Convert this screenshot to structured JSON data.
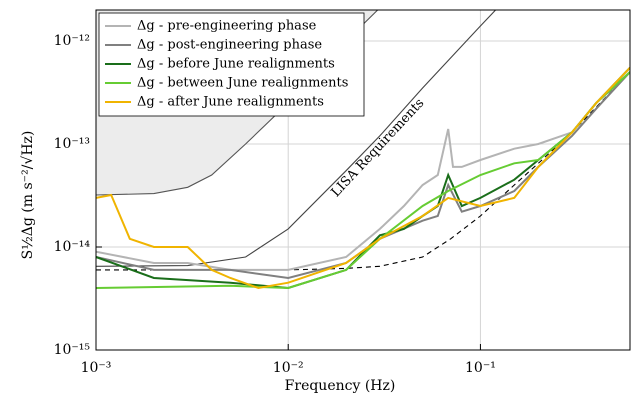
{
  "chart_data": {
    "type": "line",
    "log_x": true,
    "log_y": true,
    "grid": true,
    "xlabel": "Frequency (Hz)",
    "ylabel": "S½Δg (m s⁻²/√Hz)",
    "annotation": "LISA Requirements",
    "xlim": [
      0.001,
      0.6
    ],
    "ylim": [
      1e-15,
      2e-12
    ],
    "xticks": [
      {
        "value": 0.001,
        "label": "10⁻³"
      },
      {
        "value": 0.01,
        "label": "10⁻²"
      },
      {
        "value": 0.1,
        "label": "10⁻¹"
      }
    ],
    "yticks": [
      {
        "value": 1e-15,
        "label": "10⁻¹⁵"
      },
      {
        "value": 1e-14,
        "label": "10⁻¹⁴"
      },
      {
        "value": 1e-13,
        "label": "10⁻¹³"
      },
      {
        "value": 1e-12,
        "label": "10⁻¹²"
      }
    ],
    "legend": "upper left",
    "series": [
      {
        "style": "shaded",
        "color": "#555555",
        "x": [
          0.001,
          0.002,
          0.003,
          0.004,
          0.006,
          0.01,
          0.02,
          0.03
        ],
        "values": [
          3.2e-14,
          3.3e-14,
          3.8e-14,
          5e-14,
          1e-13,
          2.5e-13,
          1e-12,
          2.1e-12
        ]
      },
      {
        "style": "thin",
        "color": "#444444",
        "x": [
          0.001,
          0.003,
          0.006,
          0.01,
          0.02,
          0.03,
          0.05,
          0.1,
          0.12
        ],
        "values": [
          6.5e-15,
          6.6e-15,
          8e-15,
          1.5e-14,
          5.5e-14,
          1.2e-13,
          3.5e-13,
          1.4e-12,
          2e-12
        ]
      },
      {
        "style": "dashed",
        "color": "#000000",
        "x": [
          0.001,
          0.01,
          0.02,
          0.03,
          0.05,
          0.07,
          0.1,
          0.15,
          0.2,
          0.3,
          0.6
        ],
        "values": [
          6e-15,
          6e-15,
          6.2e-15,
          6.5e-15,
          8e-15,
          1.2e-14,
          2e-14,
          4e-14,
          6.5e-14,
          1.3e-13,
          5e-13
        ]
      },
      {
        "name": "Δg - pre-engineering phase",
        "color": "#b4b4b4",
        "x": [
          0.001,
          0.002,
          0.003,
          0.005,
          0.01,
          0.02,
          0.03,
          0.04,
          0.05,
          0.06,
          0.068,
          0.072,
          0.08,
          0.1,
          0.15,
          0.2,
          0.3,
          0.4,
          0.6
        ],
        "values": [
          9e-15,
          7e-15,
          7e-15,
          6e-15,
          6e-15,
          8e-15,
          1.5e-14,
          2.5e-14,
          4e-14,
          5e-14,
          1.4e-13,
          6e-14,
          6e-14,
          7e-14,
          9e-14,
          1e-13,
          1.3e-13,
          2.5e-13,
          5e-13
        ]
      },
      {
        "name": "Δg - post-engineering phase",
        "color": "#808080",
        "x": [
          0.001,
          0.002,
          0.005,
          0.01,
          0.02,
          0.03,
          0.05,
          0.06,
          0.068,
          0.08,
          0.1,
          0.15,
          0.2,
          0.3,
          0.4,
          0.6
        ],
        "values": [
          8e-15,
          6e-15,
          6e-15,
          5e-15,
          7e-15,
          1.2e-14,
          1.8e-14,
          2e-14,
          4e-14,
          2.2e-14,
          2.5e-14,
          3.5e-14,
          6e-14,
          1.2e-13,
          2.2e-13,
          5e-13
        ]
      },
      {
        "name": "Δg - before June realignments",
        "color": "#1a6e1a",
        "x": [
          0.001,
          0.002,
          0.005,
          0.01,
          0.02,
          0.03,
          0.04,
          0.05,
          0.06,
          0.068,
          0.08,
          0.1,
          0.15,
          0.2,
          0.3,
          0.4,
          0.6
        ],
        "values": [
          8e-15,
          5e-15,
          4.5e-15,
          4e-15,
          6e-15,
          1.3e-14,
          1.5e-14,
          2e-14,
          2.5e-14,
          5e-14,
          2.5e-14,
          3e-14,
          4.5e-14,
          7e-14,
          1.3e-13,
          2.5e-13,
          5.5e-13
        ]
      },
      {
        "name": "Δg - between June realignments",
        "color": "#66cc33",
        "x": [
          0.001,
          0.005,
          0.01,
          0.02,
          0.03,
          0.05,
          0.068,
          0.1,
          0.15,
          0.2,
          0.3,
          0.4,
          0.6
        ],
        "values": [
          4e-15,
          4.2e-15,
          4e-15,
          6e-15,
          1.2e-14,
          2.5e-14,
          3.5e-14,
          5e-14,
          6.5e-14,
          7e-14,
          1.3e-13,
          2.5e-13,
          5e-13
        ]
      },
      {
        "name": "Δg - after June realignments",
        "color": "#f0b400",
        "x": [
          0.001,
          0.0012,
          0.0015,
          0.002,
          0.003,
          0.004,
          0.005,
          0.007,
          0.01,
          0.02,
          0.03,
          0.05,
          0.068,
          0.1,
          0.15,
          0.2,
          0.3,
          0.4,
          0.6
        ],
        "values": [
          3e-14,
          3.2e-14,
          1.2e-14,
          1e-14,
          1e-14,
          6e-15,
          5e-15,
          4e-15,
          4.5e-15,
          7e-15,
          1.2e-14,
          2e-14,
          3e-14,
          2.5e-14,
          3e-14,
          6e-14,
          1.3e-13,
          2.5e-13,
          5.5e-13
        ]
      }
    ]
  }
}
